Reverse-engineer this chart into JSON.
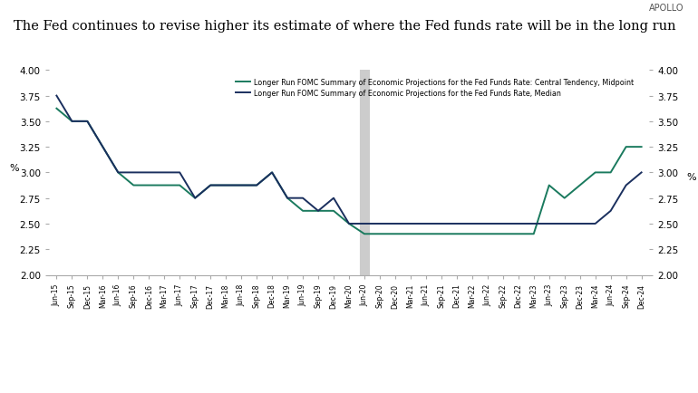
{
  "title": "The Fed continues to revise higher its estimate of where the Fed funds rate will be in the long run",
  "watermark": "APOLLO",
  "ylabel_left": "%",
  "ylabel_right": "%",
  "ylim": [
    2.0,
    4.0
  ],
  "yticks": [
    2.0,
    2.25,
    2.5,
    2.75,
    3.0,
    3.25,
    3.5,
    3.75,
    4.0
  ],
  "legend_midpoint": "Longer Run FOMC Summary of Economic Projections for the Fed Funds Rate: Central Tendency, Midpoint",
  "legend_median": "Longer Run FOMC Summary of Economic Projections for the Fed Funds Rate, Median",
  "color_midpoint": "#1a7a5e",
  "color_median": "#1a2f5e",
  "vline_x": "Jun-20",
  "vline_color": "#cccccc",
  "background_color": "#ffffff",
  "x_labels": [
    "Jun-15",
    "Sep-15",
    "Dec-15",
    "Mar-16",
    "Jun-16",
    "Sep-16",
    "Dec-16",
    "Mar-17",
    "Jun-17",
    "Sep-17",
    "Dec-17",
    "Mar-18",
    "Jun-18",
    "Sep-18",
    "Dec-18",
    "Mar-19",
    "Jun-19",
    "Sep-19",
    "Dec-19",
    "Mar-20",
    "Jun-20",
    "Sep-20",
    "Dec-20",
    "Mar-21",
    "Jun-21",
    "Sep-21",
    "Dec-21",
    "Mar-22",
    "Jun-22",
    "Sep-22",
    "Dec-22",
    "Mar-23",
    "Jun-23",
    "Sep-23",
    "Dec-23",
    "Mar-24",
    "Jun-24",
    "Sep-24",
    "Dec-24"
  ],
  "midpoint_values": [
    3.625,
    3.5,
    3.5,
    3.25,
    3.0,
    2.875,
    2.875,
    2.875,
    2.875,
    2.75,
    2.875,
    2.875,
    2.875,
    2.875,
    3.0,
    2.75,
    2.625,
    2.625,
    2.625,
    2.5,
    2.4,
    2.4,
    2.4,
    2.4,
    2.4,
    2.4,
    2.4,
    2.4,
    2.4,
    2.4,
    2.4,
    2.4,
    2.875,
    2.75,
    2.875,
    3.0,
    3.0,
    3.25,
    3.25
  ],
  "median_values": [
    3.75,
    3.5,
    3.5,
    3.25,
    3.0,
    3.0,
    3.0,
    3.0,
    3.0,
    2.75,
    2.875,
    2.875,
    2.875,
    2.875,
    3.0,
    2.75,
    2.75,
    2.625,
    2.75,
    2.5,
    2.5,
    2.5,
    2.5,
    2.5,
    2.5,
    2.5,
    2.5,
    2.5,
    2.5,
    2.5,
    2.5,
    2.5,
    2.5,
    2.5,
    2.5,
    2.5,
    2.625,
    2.875,
    3.0
  ]
}
